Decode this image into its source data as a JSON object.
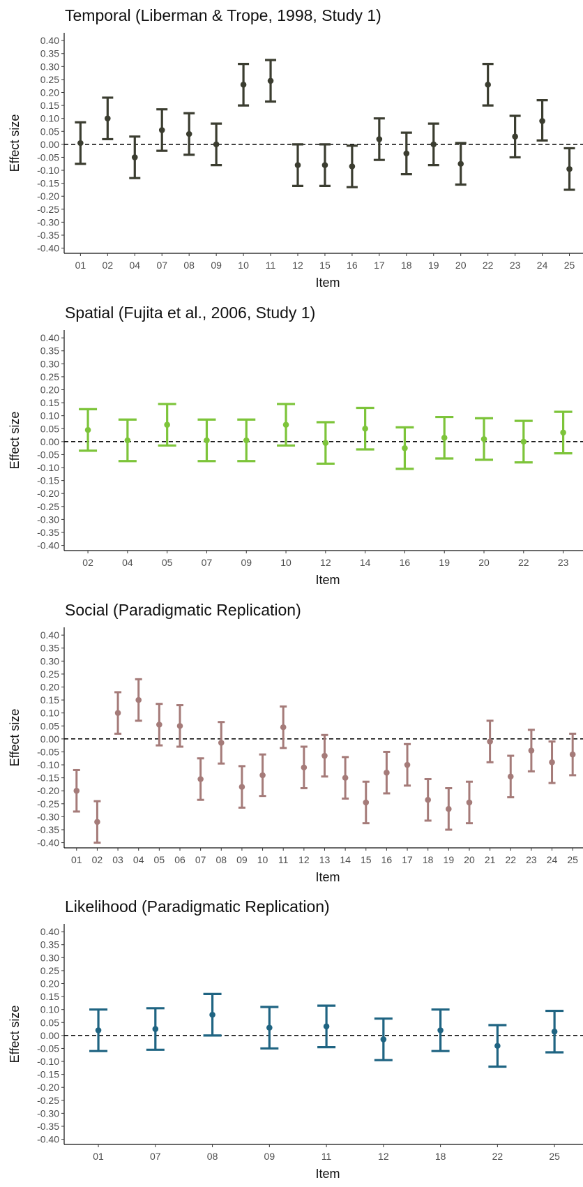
{
  "chart_data": [
    {
      "type": "errorbar",
      "title": "Temporal (Liberman & Trope, 1998, Study 1)",
      "xlabel": "Item",
      "ylabel": "Effect size",
      "color": "#3b3d30",
      "ylim": [
        -0.42,
        0.43
      ],
      "yticks": [
        "0.40",
        "0.35",
        "0.30",
        "0.25",
        "0.20",
        "0.15",
        "0.10",
        "0.05",
        "0.00",
        "-0.05",
        "-0.10",
        "-0.15",
        "-0.20",
        "-0.25",
        "-0.30",
        "-0.35",
        "-0.40"
      ],
      "reference_line": 0,
      "grid": false,
      "categories": [
        "01",
        "02",
        "04",
        "07",
        "08",
        "09",
        "10",
        "11",
        "12",
        "15",
        "16",
        "17",
        "18",
        "19",
        "20",
        "22",
        "23",
        "24",
        "25"
      ],
      "values": [
        0.005,
        0.1,
        -0.05,
        0.055,
        0.04,
        0.0,
        0.23,
        0.245,
        -0.08,
        -0.08,
        -0.085,
        0.02,
        -0.035,
        0.0,
        -0.075,
        0.23,
        0.03,
        0.09,
        -0.095
      ],
      "lower": [
        -0.075,
        0.02,
        -0.13,
        -0.025,
        -0.04,
        -0.08,
        0.15,
        0.165,
        -0.16,
        -0.16,
        -0.165,
        -0.06,
        -0.115,
        -0.08,
        -0.155,
        0.15,
        -0.05,
        0.015,
        -0.175
      ],
      "upper": [
        0.085,
        0.18,
        0.03,
        0.135,
        0.12,
        0.08,
        0.31,
        0.325,
        0.0,
        0.0,
        -0.005,
        0.1,
        0.045,
        0.08,
        0.005,
        0.31,
        0.11,
        0.17,
        -0.015
      ]
    },
    {
      "type": "errorbar",
      "title": "Spatial (Fujita et al., 2006, Study 1)",
      "xlabel": "Item",
      "ylabel": "Effect size",
      "color": "#7dc43a",
      "ylim": [
        -0.42,
        0.43
      ],
      "yticks": [
        "0.40",
        "0.35",
        "0.30",
        "0.25",
        "0.20",
        "0.15",
        "0.10",
        "0.05",
        "0.00",
        "-0.05",
        "-0.10",
        "-0.15",
        "-0.20",
        "-0.25",
        "-0.30",
        "-0.35",
        "-0.40"
      ],
      "reference_line": 0,
      "grid": false,
      "categories": [
        "02",
        "04",
        "05",
        "07",
        "09",
        "10",
        "12",
        "14",
        "16",
        "19",
        "20",
        "22",
        "23"
      ],
      "values": [
        0.045,
        0.005,
        0.065,
        0.005,
        0.005,
        0.065,
        -0.005,
        0.05,
        -0.025,
        0.015,
        0.01,
        0.0,
        0.035
      ],
      "lower": [
        -0.035,
        -0.075,
        -0.015,
        -0.075,
        -0.075,
        -0.015,
        -0.085,
        -0.03,
        -0.105,
        -0.065,
        -0.07,
        -0.08,
        -0.045
      ],
      "upper": [
        0.125,
        0.085,
        0.145,
        0.085,
        0.085,
        0.145,
        0.075,
        0.13,
        0.055,
        0.095,
        0.09,
        0.08,
        0.115
      ]
    },
    {
      "type": "errorbar",
      "title": "Social (Paradigmatic Replication)",
      "xlabel": "Item",
      "ylabel": "Effect size",
      "color": "#a57b79",
      "ylim": [
        -0.42,
        0.43
      ],
      "yticks": [
        "0.40",
        "0.35",
        "0.30",
        "0.25",
        "0.20",
        "0.15",
        "0.10",
        "0.05",
        "0.00",
        "-0.05",
        "-0.10",
        "-0.15",
        "-0.20",
        "-0.25",
        "-0.30",
        "-0.35",
        "-0.40"
      ],
      "reference_line": 0,
      "grid": false,
      "categories": [
        "01",
        "02",
        "03",
        "04",
        "05",
        "06",
        "07",
        "08",
        "09",
        "10",
        "11",
        "12",
        "13",
        "14",
        "15",
        "16",
        "17",
        "18",
        "19",
        "20",
        "21",
        "22",
        "23",
        "24",
        "25"
      ],
      "values": [
        -0.2,
        -0.32,
        0.1,
        0.15,
        0.055,
        0.05,
        -0.155,
        -0.015,
        -0.185,
        -0.14,
        0.045,
        -0.11,
        -0.065,
        -0.15,
        -0.245,
        -0.13,
        -0.1,
        -0.235,
        -0.27,
        -0.245,
        -0.01,
        -0.145,
        -0.045,
        -0.09,
        -0.06
      ],
      "lower": [
        -0.28,
        -0.4,
        0.02,
        0.07,
        -0.025,
        -0.03,
        -0.235,
        -0.095,
        -0.265,
        -0.22,
        -0.035,
        -0.19,
        -0.145,
        -0.23,
        -0.325,
        -0.21,
        -0.18,
        -0.315,
        -0.35,
        -0.325,
        -0.09,
        -0.225,
        -0.125,
        -0.17,
        -0.14
      ],
      "upper": [
        -0.12,
        -0.24,
        0.18,
        0.23,
        0.135,
        0.13,
        -0.075,
        0.065,
        -0.105,
        -0.06,
        0.125,
        -0.03,
        0.015,
        -0.07,
        -0.165,
        -0.05,
        -0.02,
        -0.155,
        -0.19,
        -0.165,
        0.07,
        -0.065,
        0.035,
        -0.01,
        0.02
      ]
    },
    {
      "type": "errorbar",
      "title": "Likelihood (Paradigmatic Replication)",
      "xlabel": "Item",
      "ylabel": "Effect size",
      "color": "#1f6482",
      "ylim": [
        -0.42,
        0.43
      ],
      "yticks": [
        "0.40",
        "0.35",
        "0.30",
        "0.25",
        "0.20",
        "0.15",
        "0.10",
        "0.05",
        "0.00",
        "-0.05",
        "-0.10",
        "-0.15",
        "-0.20",
        "-0.25",
        "-0.30",
        "-0.35",
        "-0.40"
      ],
      "reference_line": 0,
      "grid": false,
      "categories": [
        "01",
        "07",
        "08",
        "09",
        "11",
        "12",
        "18",
        "22",
        "25"
      ],
      "values": [
        0.02,
        0.025,
        0.08,
        0.03,
        0.035,
        -0.015,
        0.02,
        -0.04,
        0.015
      ],
      "lower": [
        -0.06,
        -0.055,
        0.0,
        -0.05,
        -0.045,
        -0.095,
        -0.06,
        -0.12,
        -0.065
      ],
      "upper": [
        0.1,
        0.105,
        0.16,
        0.11,
        0.115,
        0.065,
        0.1,
        0.04,
        0.095
      ]
    }
  ]
}
